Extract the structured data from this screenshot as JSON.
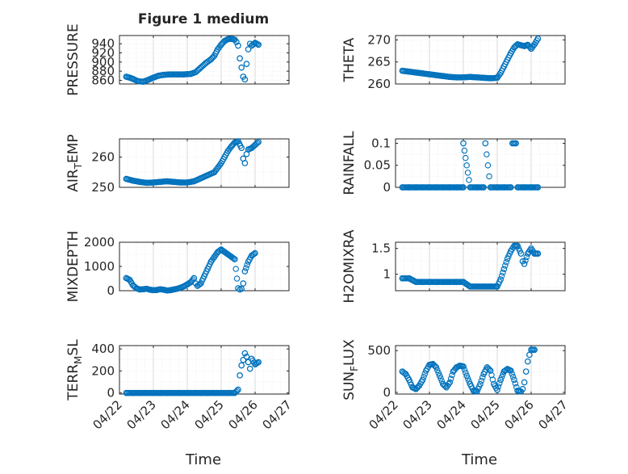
{
  "figure": {
    "title": "Figure 1 medium",
    "xlabel": "Time",
    "x_tick_labels": [
      "04/22",
      "04/23",
      "04/24",
      "04/25",
      "04/26",
      "04/27"
    ],
    "marker_color": "#0072BD",
    "grid_color": "#dcdcdc",
    "axis_color": "#262626"
  },
  "chart_data": [
    {
      "type": "scatter",
      "name": "pressure",
      "ylabel": "PRESSURE",
      "x_dates": [
        "2020-04-22",
        "2020-04-27"
      ],
      "ylim": [
        852,
        958
      ],
      "yticks": [
        860,
        880,
        900,
        920,
        940
      ],
      "points": [
        [
          0.2,
          868
        ],
        [
          0.3,
          866
        ],
        [
          0.4,
          863
        ],
        [
          0.55,
          858
        ],
        [
          0.7,
          857
        ],
        [
          0.85,
          861
        ],
        [
          1.0,
          866
        ],
        [
          1.15,
          870
        ],
        [
          1.3,
          872
        ],
        [
          1.5,
          873
        ],
        [
          1.7,
          873
        ],
        [
          1.9,
          873
        ],
        [
          2.1,
          874
        ],
        [
          2.25,
          878
        ],
        [
          2.4,
          888
        ],
        [
          2.55,
          898
        ],
        [
          2.7,
          906
        ],
        [
          2.8,
          914
        ],
        [
          2.9,
          928
        ],
        [
          3.0,
          938
        ],
        [
          3.1,
          946
        ],
        [
          3.2,
          950
        ],
        [
          3.3,
          951
        ],
        [
          3.4,
          949
        ],
        [
          3.45,
          944
        ],
        [
          3.5,
          936
        ],
        [
          3.55,
          908
        ],
        [
          3.6,
          888
        ],
        [
          3.65,
          868
        ],
        [
          3.7,
          862
        ],
        [
          3.75,
          896
        ],
        [
          3.8,
          928
        ],
        [
          3.85,
          940
        ],
        [
          3.9,
          936
        ],
        [
          4.0,
          942
        ],
        [
          4.1,
          938
        ]
      ]
    },
    {
      "type": "scatter",
      "name": "theta",
      "ylabel": "THETA",
      "x_dates": [
        "2020-04-22",
        "2020-04-27"
      ],
      "ylim": [
        260,
        271
      ],
      "yticks": [
        260,
        265,
        270
      ],
      "points": [
        [
          0.2,
          263.0
        ],
        [
          0.4,
          262.8
        ],
        [
          0.6,
          262.6
        ],
        [
          0.8,
          262.4
        ],
        [
          1.0,
          262.2
        ],
        [
          1.2,
          262.0
        ],
        [
          1.4,
          261.8
        ],
        [
          1.6,
          261.6
        ],
        [
          1.8,
          261.5
        ],
        [
          2.0,
          261.5
        ],
        [
          2.2,
          261.6
        ],
        [
          2.4,
          261.5
        ],
        [
          2.6,
          261.4
        ],
        [
          2.8,
          261.3
        ],
        [
          3.0,
          261.4
        ],
        [
          3.1,
          262.5
        ],
        [
          3.2,
          264.0
        ],
        [
          3.3,
          265.5
        ],
        [
          3.4,
          267.0
        ],
        [
          3.5,
          268.3
        ],
        [
          3.6,
          269.0
        ],
        [
          3.7,
          268.8
        ],
        [
          3.8,
          268.6
        ],
        [
          3.9,
          268.9
        ],
        [
          4.0,
          268.0
        ],
        [
          4.1,
          269.0
        ],
        [
          4.2,
          270.3
        ]
      ]
    },
    {
      "type": "scatter",
      "name": "air_temp",
      "ylabel": "AIR_TEMP",
      "x_dates": [
        "2020-04-22",
        "2020-04-27"
      ],
      "ylim": [
        250,
        266
      ],
      "yticks": [
        250,
        260
      ],
      "points": [
        [
          0.2,
          252.8
        ],
        [
          0.4,
          252.2
        ],
        [
          0.6,
          251.8
        ],
        [
          0.8,
          251.5
        ],
        [
          1.0,
          251.6
        ],
        [
          1.2,
          251.8
        ],
        [
          1.4,
          252.0
        ],
        [
          1.6,
          251.8
        ],
        [
          1.8,
          251.6
        ],
        [
          2.0,
          251.6
        ],
        [
          2.2,
          252.0
        ],
        [
          2.4,
          253.0
        ],
        [
          2.6,
          254.0
        ],
        [
          2.8,
          255.0
        ],
        [
          3.0,
          258.0
        ],
        [
          3.1,
          260.0
        ],
        [
          3.2,
          262.0
        ],
        [
          3.3,
          263.5
        ],
        [
          3.4,
          264.8
        ],
        [
          3.5,
          265.2
        ],
        [
          3.6,
          263.0
        ],
        [
          3.65,
          259.5
        ],
        [
          3.7,
          258.0
        ],
        [
          3.75,
          261.0
        ],
        [
          3.8,
          262.5
        ],
        [
          3.9,
          263.0
        ],
        [
          4.0,
          264.0
        ],
        [
          4.1,
          265.0
        ]
      ]
    },
    {
      "type": "scatter",
      "name": "rainfall",
      "ylabel": "RAINFALL",
      "x_dates": [
        "2020-04-22",
        "2020-04-27"
      ],
      "ylim": [
        0,
        0.11
      ],
      "yticks": [
        0,
        0.05,
        0.1
      ],
      "points": [
        [
          0.2,
          0
        ],
        [
          0.4,
          0
        ],
        [
          0.6,
          0
        ],
        [
          0.8,
          0
        ],
        [
          1.0,
          0
        ],
        [
          1.2,
          0
        ],
        [
          1.4,
          0
        ],
        [
          1.6,
          0
        ],
        [
          1.8,
          0
        ],
        [
          2.0,
          0
        ],
        [
          2.2,
          0
        ],
        [
          2.4,
          0
        ],
        [
          2.6,
          0
        ],
        [
          2.8,
          0
        ],
        [
          3.0,
          0
        ],
        [
          3.2,
          0
        ],
        [
          3.4,
          0
        ],
        [
          3.6,
          0
        ],
        [
          3.8,
          0
        ],
        [
          4.0,
          0
        ],
        [
          4.2,
          0
        ],
        [
          2.0,
          0.1
        ],
        [
          2.65,
          0.1
        ],
        [
          3.45,
          0.1
        ],
        [
          3.55,
          0.1
        ]
      ]
    },
    {
      "type": "scatter",
      "name": "mixdepth",
      "ylabel": "MIXDEPTH",
      "x_dates": [
        "2020-04-22",
        "2020-04-27"
      ],
      "ylim": [
        0,
        2000
      ],
      "yticks": [
        0,
        1000,
        2000
      ],
      "points": [
        [
          0.2,
          520
        ],
        [
          0.3,
          450
        ],
        [
          0.4,
          220
        ],
        [
          0.5,
          100
        ],
        [
          0.6,
          50
        ],
        [
          0.7,
          60
        ],
        [
          0.8,
          80
        ],
        [
          0.9,
          40
        ],
        [
          1.0,
          20
        ],
        [
          1.1,
          30
        ],
        [
          1.2,
          60
        ],
        [
          1.3,
          40
        ],
        [
          1.4,
          10
        ],
        [
          1.5,
          20
        ],
        [
          1.6,
          50
        ],
        [
          1.7,
          80
        ],
        [
          1.8,
          120
        ],
        [
          1.9,
          180
        ],
        [
          2.0,
          260
        ],
        [
          2.1,
          350
        ],
        [
          2.2,
          520
        ],
        [
          2.25,
          300
        ],
        [
          2.3,
          200
        ],
        [
          2.4,
          300
        ],
        [
          2.5,
          600
        ],
        [
          2.6,
          900
        ],
        [
          2.7,
          1200
        ],
        [
          2.8,
          1400
        ],
        [
          2.9,
          1600
        ],
        [
          3.0,
          1700
        ],
        [
          3.1,
          1600
        ],
        [
          3.2,
          1500
        ],
        [
          3.3,
          1400
        ],
        [
          3.4,
          1300
        ],
        [
          3.5,
          100
        ],
        [
          3.55,
          50
        ],
        [
          3.6,
          80
        ],
        [
          3.65,
          300
        ],
        [
          3.7,
          800
        ],
        [
          3.8,
          1200
        ],
        [
          3.9,
          1450
        ],
        [
          4.0,
          1550
        ]
      ]
    },
    {
      "type": "scatter",
      "name": "h2omixra",
      "ylabel": "H2OMIXRA",
      "x_dates": [
        "2020-04-22",
        "2020-04-27"
      ],
      "ylim": [
        0.68,
        1.62
      ],
      "yticks": [
        1,
        1.5
      ],
      "points": [
        [
          0.2,
          0.92
        ],
        [
          0.4,
          0.92
        ],
        [
          0.6,
          0.85
        ],
        [
          0.8,
          0.85
        ],
        [
          1.0,
          0.85
        ],
        [
          1.2,
          0.85
        ],
        [
          1.4,
          0.85
        ],
        [
          1.6,
          0.85
        ],
        [
          1.8,
          0.85
        ],
        [
          2.0,
          0.85
        ],
        [
          2.2,
          0.76
        ],
        [
          2.4,
          0.76
        ],
        [
          2.6,
          0.76
        ],
        [
          2.8,
          0.76
        ],
        [
          3.0,
          0.76
        ],
        [
          3.1,
          0.9
        ],
        [
          3.2,
          1.1
        ],
        [
          3.3,
          1.3
        ],
        [
          3.4,
          1.45
        ],
        [
          3.5,
          1.55
        ],
        [
          3.6,
          1.55
        ],
        [
          3.7,
          1.4
        ],
        [
          3.75,
          1.25
        ],
        [
          3.8,
          1.2
        ],
        [
          3.9,
          1.4
        ],
        [
          4.0,
          1.5
        ],
        [
          4.1,
          1.4
        ],
        [
          4.2,
          1.4
        ]
      ]
    },
    {
      "type": "scatter",
      "name": "terr_msl",
      "ylabel": "TERR_MSL",
      "x_dates": [
        "2020-04-22",
        "2020-04-27"
      ],
      "ylim": [
        -10,
        430
      ],
      "yticks": [
        0,
        200,
        400
      ],
      "points": [
        [
          0.2,
          0
        ],
        [
          0.4,
          0
        ],
        [
          0.6,
          0
        ],
        [
          0.8,
          0
        ],
        [
          1.0,
          0
        ],
        [
          1.2,
          0
        ],
        [
          1.4,
          0
        ],
        [
          1.6,
          0
        ],
        [
          1.8,
          0
        ],
        [
          2.0,
          0
        ],
        [
          2.2,
          0
        ],
        [
          2.4,
          0
        ],
        [
          2.6,
          0
        ],
        [
          2.8,
          0
        ],
        [
          3.0,
          0
        ],
        [
          3.2,
          0
        ],
        [
          3.4,
          0
        ],
        [
          3.5,
          30
        ],
        [
          3.55,
          160
        ],
        [
          3.6,
          250
        ],
        [
          3.65,
          300
        ],
        [
          3.7,
          360
        ],
        [
          3.75,
          330
        ],
        [
          3.8,
          280
        ],
        [
          3.85,
          220
        ],
        [
          3.9,
          310
        ],
        [
          4.0,
          260
        ],
        [
          4.1,
          280
        ]
      ]
    },
    {
      "type": "scatter",
      "name": "sun_flux",
      "ylabel": "SUN_FLUX",
      "x_dates": [
        "2020-04-22",
        "2020-04-27"
      ],
      "ylim": [
        -20,
        560
      ],
      "yticks": [
        0,
        500
      ],
      "points": [
        [
          0.2,
          250
        ],
        [
          0.3,
          220
        ],
        [
          0.4,
          150
        ],
        [
          0.5,
          60
        ],
        [
          0.6,
          40
        ],
        [
          0.7,
          80
        ],
        [
          0.8,
          150
        ],
        [
          0.9,
          260
        ],
        [
          1.0,
          330
        ],
        [
          1.1,
          340
        ],
        [
          1.2,
          300
        ],
        [
          1.3,
          200
        ],
        [
          1.4,
          100
        ],
        [
          1.5,
          60
        ],
        [
          1.6,
          120
        ],
        [
          1.7,
          250
        ],
        [
          1.8,
          300
        ],
        [
          1.9,
          320
        ],
        [
          2.0,
          310
        ],
        [
          2.1,
          200
        ],
        [
          2.2,
          100
        ],
        [
          2.3,
          20
        ],
        [
          2.4,
          10
        ],
        [
          2.5,
          100
        ],
        [
          2.6,
          220
        ],
        [
          2.7,
          300
        ],
        [
          2.8,
          260
        ],
        [
          2.9,
          100
        ],
        [
          3.0,
          30
        ],
        [
          3.1,
          150
        ],
        [
          3.2,
          250
        ],
        [
          3.3,
          280
        ],
        [
          3.4,
          260
        ],
        [
          3.5,
          150
        ],
        [
          3.6,
          20
        ],
        [
          3.7,
          10
        ],
        [
          3.75,
          40
        ],
        [
          3.8,
          120
        ],
        [
          3.85,
          250
        ],
        [
          3.9,
          370
        ],
        [
          3.95,
          450
        ],
        [
          4.0,
          510
        ],
        [
          4.1,
          510
        ]
      ]
    }
  ]
}
